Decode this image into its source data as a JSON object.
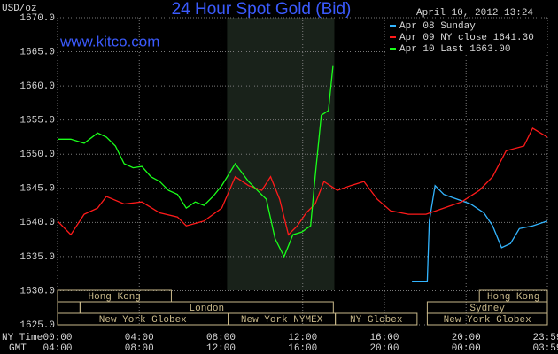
{
  "chart_data": {
    "type": "line",
    "title": "24 Hour Spot Gold (Bid)",
    "ylabel": "USD/oz",
    "website": "www.kitco.com",
    "timestamp": "April 10, 2012 13:24",
    "xlabel_ny": "NY Time",
    "xlabel_gmt": "GMT",
    "xlim": [
      0,
      23.98
    ],
    "xticks": [
      {
        "value": 0,
        "label": "00:00"
      },
      {
        "value": 4,
        "label": "04:00"
      },
      {
        "value": 8,
        "label": "08:00"
      },
      {
        "value": 12,
        "label": "12:00"
      },
      {
        "value": 16,
        "label": "16:00"
      },
      {
        "value": 20,
        "label": "20:00"
      },
      {
        "value": 23.98,
        "label": "23:59"
      }
    ],
    "gmt_labels": [
      "04:00",
      "08:00",
      "12:00",
      "16:00",
      "20:00",
      "00:00",
      "03:59"
    ],
    "ylim": [
      1625,
      1670
    ],
    "yticks": [
      {
        "value": 1625,
        "label": "1625.0"
      },
      {
        "value": 1630,
        "label": "1630.0"
      },
      {
        "value": 1635,
        "label": "1635.0"
      },
      {
        "value": 1640,
        "label": "1640.0"
      },
      {
        "value": 1645,
        "label": "1645.0"
      },
      {
        "value": 1650,
        "label": "1650.0"
      },
      {
        "value": 1655,
        "label": "1655.0"
      },
      {
        "value": 1660,
        "label": "1660.0"
      },
      {
        "value": 1665,
        "label": "1665.0"
      },
      {
        "value": 1670,
        "label": "1670.0"
      }
    ],
    "grid": true,
    "sessions": [
      "Hong Kong",
      "London",
      "New York Globex",
      "New York NYMEX",
      "NY Globex",
      "Hong Kong",
      "Sydney",
      "New York Globex"
    ],
    "series": [
      {
        "name": "Apr 08 Sunday",
        "color": "#33b5ff",
        "x": [
          17.35,
          18.1,
          18.2,
          18.48,
          18.91,
          19.57,
          20.22,
          20.87,
          21.3,
          21.74,
          22.17,
          22.61,
          23.26,
          23.98
        ],
        "values": [
          1631.3,
          1631.3,
          1640.2,
          1645.4,
          1644.1,
          1643.4,
          1642.7,
          1641.4,
          1639.5,
          1636.3,
          1636.9,
          1639.1,
          1639.5,
          1640.2
        ]
      },
      {
        "name": "Apr 09 NY close 1641.30",
        "color": "#ff1a1a",
        "x": [
          0,
          0.65,
          1.3,
          1.96,
          2.39,
          3.26,
          4.13,
          5.0,
          5.87,
          6.3,
          7.17,
          8.04,
          8.7,
          9.35,
          10.0,
          10.43,
          10.87,
          11.3,
          11.74,
          12.17,
          12.61,
          13.04,
          13.7,
          14.35,
          15.0,
          15.65,
          16.3,
          17.17,
          18.04,
          18.91,
          19.78,
          20.65,
          21.3,
          21.96,
          22.83,
          23.26,
          23.98
        ],
        "values": [
          1640.2,
          1638.2,
          1641.2,
          1642.1,
          1643.8,
          1642.7,
          1643.0,
          1641.4,
          1640.8,
          1639.5,
          1640.2,
          1642.1,
          1646.7,
          1645.4,
          1644.7,
          1646.7,
          1643.4,
          1638.2,
          1639.5,
          1641.4,
          1642.7,
          1646.0,
          1644.7,
          1645.4,
          1646.0,
          1643.4,
          1641.7,
          1641.2,
          1641.2,
          1642.1,
          1643.0,
          1644.7,
          1646.7,
          1650.5,
          1651.2,
          1653.8,
          1652.5
        ]
      },
      {
        "name": "Apr 10 Last 1663.00",
        "color": "#1aff1a",
        "x": [
          0,
          0.65,
          1.3,
          1.96,
          2.39,
          2.83,
          3.26,
          3.7,
          4.13,
          4.57,
          5.0,
          5.43,
          5.87,
          6.3,
          6.74,
          7.17,
          7.61,
          8.04,
          8.7,
          9.35,
          9.78,
          10.22,
          10.65,
          11.09,
          11.52,
          11.96,
          12.39,
          12.61,
          12.91,
          13.26,
          13.48
        ],
        "values": [
          1652.2,
          1652.2,
          1651.6,
          1653.1,
          1652.5,
          1651.2,
          1648.6,
          1648.0,
          1648.2,
          1646.7,
          1646.0,
          1644.7,
          1644.1,
          1642.1,
          1643.0,
          1642.5,
          1643.8,
          1645.4,
          1648.6,
          1646.0,
          1644.7,
          1643.4,
          1637.6,
          1635.0,
          1638.2,
          1638.6,
          1639.5,
          1646.7,
          1655.7,
          1656.4,
          1662.9
        ]
      }
    ]
  }
}
